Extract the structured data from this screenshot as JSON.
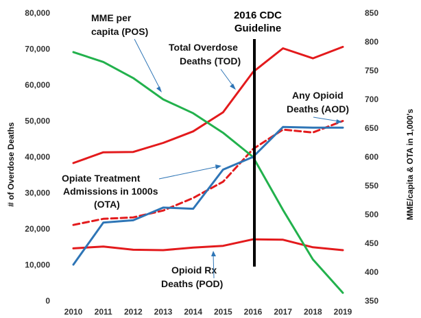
{
  "chart_data": {
    "type": "line",
    "x": [
      2010,
      2011,
      2012,
      2013,
      2014,
      2015,
      2016,
      2017,
      2018,
      2019
    ],
    "x_tick_labels": [
      "2010",
      "2011",
      "2012",
      "2013",
      "2014",
      "2015",
      "2016",
      "2017",
      "2018",
      "2019"
    ],
    "ylabel": "# of Overdose Deaths",
    "ylabel_right": "MME/capita & OTA in 1,000's",
    "ylim": [
      0,
      80000
    ],
    "ylim_right": [
      350,
      850
    ],
    "y_ticks": [
      "0",
      "10,000",
      "20,000",
      "30,000",
      "40,000",
      "50,000",
      "60,000",
      "70,000",
      "80,000"
    ],
    "y_ticks_right": [
      "350",
      "400",
      "450",
      "500",
      "550",
      "600",
      "650",
      "700",
      "750",
      "800",
      "850"
    ],
    "grid": false,
    "series": [
      {
        "key": "tod",
        "axis": "left",
        "color": "#e31a1c",
        "dashed": false,
        "values": [
          38300,
          41300,
          41400,
          43900,
          47100,
          52400,
          63600,
          70200,
          67400,
          70600
        ]
      },
      {
        "key": "aod",
        "axis": "left",
        "color": "#e31a1c",
        "dashed": true,
        "values": [
          21100,
          22800,
          23200,
          25100,
          28600,
          33100,
          42200,
          47600,
          46800,
          50000
        ]
      },
      {
        "key": "pod",
        "axis": "left",
        "color": "#e31a1c",
        "dashed": false,
        "values": [
          14600,
          15100,
          14200,
          14100,
          14800,
          15300,
          17100,
          17000,
          14900,
          14100
        ]
      },
      {
        "key": "mme",
        "axis": "right",
        "color": "#22b14c",
        "dashed": false,
        "values": [
          782,
          765,
          737,
          700,
          676,
          642,
          600,
          508,
          422,
          364
        ]
      },
      {
        "key": "ota",
        "axis": "right",
        "color": "#2e75b6",
        "dashed": false,
        "values": [
          413,
          486,
          490,
          512,
          510,
          578,
          600,
          652,
          651,
          651
        ]
      }
    ],
    "annotations": {
      "mme": {
        "line1": "MME per",
        "line2": "capita  (POS)"
      },
      "tod": {
        "line1": "Total Overdose",
        "line2": "Deaths (TOD)"
      },
      "aod": {
        "line1": "Any Opioid",
        "line2": "Deaths (AOD)"
      },
      "ota": {
        "line1": "Opiate Treatment",
        "line2": "Admissions in 1000s",
        "line3": "(OTA)"
      },
      "pod": {
        "line1": "Opioid Rx",
        "line2": "Deaths (POD)"
      }
    },
    "guideline": {
      "year": 2016,
      "line1": "2016 CDC",
      "line2": "Guideline"
    }
  }
}
